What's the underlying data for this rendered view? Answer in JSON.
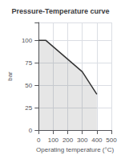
{
  "chart_data": {
    "type": "line",
    "title": "Pressure-Temperature curve",
    "xlabel": "Operating temperature (°C)",
    "ylabel": "bar",
    "x": [
      0,
      50,
      300,
      400
    ],
    "values": [
      100,
      100,
      65,
      40
    ],
    "color": "#333333",
    "xlim": [
      0,
      500
    ],
    "ylim": [
      0,
      120
    ],
    "xticks": [
      0,
      100,
      200,
      300,
      400,
      500
    ],
    "yticks": [
      0,
      25,
      50,
      75,
      100
    ],
    "grid": true
  }
}
